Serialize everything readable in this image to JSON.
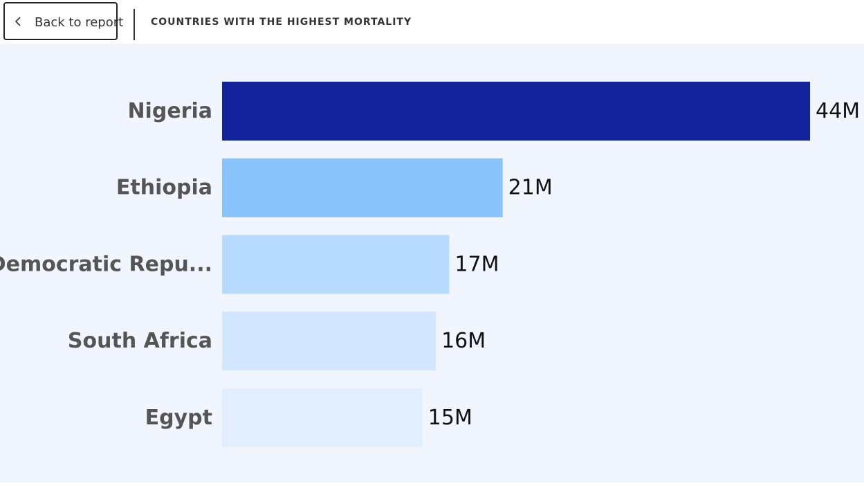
{
  "header": {
    "back_label": "Back to report",
    "title": "COUNTRIES WITH THE HIGHEST MORTALITY"
  },
  "icons": {
    "back": "chevron-left-icon"
  },
  "chart_data": {
    "type": "bar",
    "orientation": "horizontal",
    "title": "COUNTRIES WITH THE HIGHEST MORTALITY",
    "categories": [
      "Nigeria",
      "Ethiopia",
      "Democratic Repu...",
      "South Africa",
      "Egypt"
    ],
    "values": [
      44000000,
      21000000,
      17000000,
      16000000,
      15000000
    ],
    "labels": [
      "44M",
      "21M",
      "17M",
      "16M",
      "15M"
    ],
    "colors": [
      "#11229b",
      "#89c4fd",
      "#b7dbfe",
      "#d2e7fe",
      "#e0eefe"
    ],
    "xlim": [
      0,
      44000000
    ],
    "xlabel": "",
    "ylabel": "",
    "grid": false
  }
}
